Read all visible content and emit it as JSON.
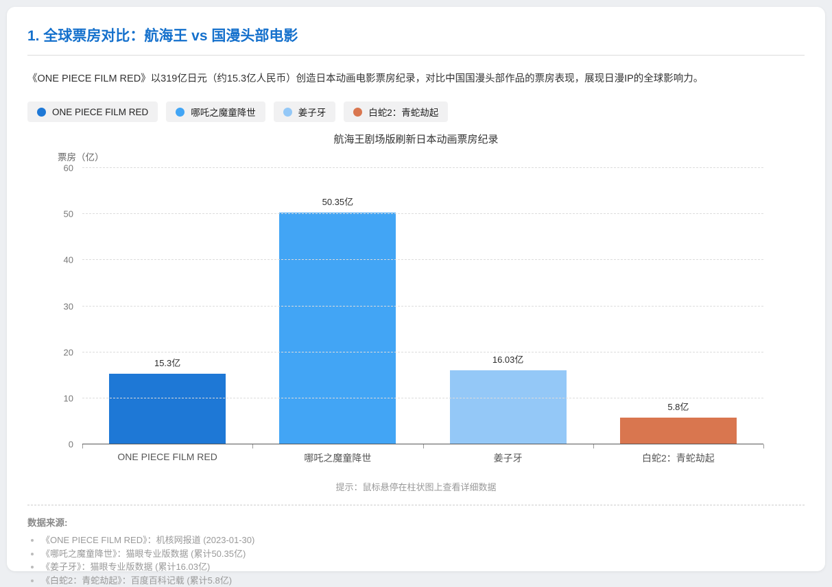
{
  "page": {
    "title": "1. 全球票房对比：航海王 vs 国漫头部电影",
    "description": "《ONE PIECE FILM RED》以319亿日元（约15.3亿人民币）创造日本动画电影票房纪录，对比中国国漫头部作品的票房表现，展现日漫IP的全球影响力。",
    "hint": "提示：鼠标悬停在柱状图上查看详细数据"
  },
  "legend": {
    "items": [
      {
        "label": "ONE PIECE FILM RED",
        "color": "#1e78d6"
      },
      {
        "label": "哪吒之魔童降世",
        "color": "#42a5f5"
      },
      {
        "label": "姜子牙",
        "color": "#94c8f7"
      },
      {
        "label": "白蛇2：青蛇劫起",
        "color": "#d9764f"
      }
    ]
  },
  "chart_data": {
    "type": "bar",
    "title": "航海王剧场版刷新日本动画票房纪录",
    "ylabel": "票房（亿）",
    "xlabel": "",
    "ylim": [
      0,
      60
    ],
    "yticks": [
      0,
      10,
      20,
      30,
      40,
      50,
      60
    ],
    "grid": true,
    "legend_position": "top",
    "categories": [
      "ONE PIECE FILM RED",
      "哪吒之魔童降世",
      "姜子牙",
      "白蛇2：青蛇劫起"
    ],
    "values": [
      15.3,
      50.35,
      16.03,
      5.8
    ],
    "value_labels": [
      "15.3亿",
      "50.35亿",
      "16.03亿",
      "5.8亿"
    ],
    "bar_colors": [
      "#1e78d6",
      "#42a5f5",
      "#94c8f7",
      "#d9764f"
    ]
  },
  "footer": {
    "heading": "数据来源:",
    "sources": [
      "《ONE PIECE FILM RED》：机核网报道 (2023-01-30)",
      "《哪吒之魔童降世》：猫眼专业版数据 (累计50.35亿)",
      "《姜子牙》：猫眼专业版数据 (累计16.03亿)",
      "《白蛇2：青蛇劫起》：百度百科记载 (累计5.8亿)"
    ]
  }
}
